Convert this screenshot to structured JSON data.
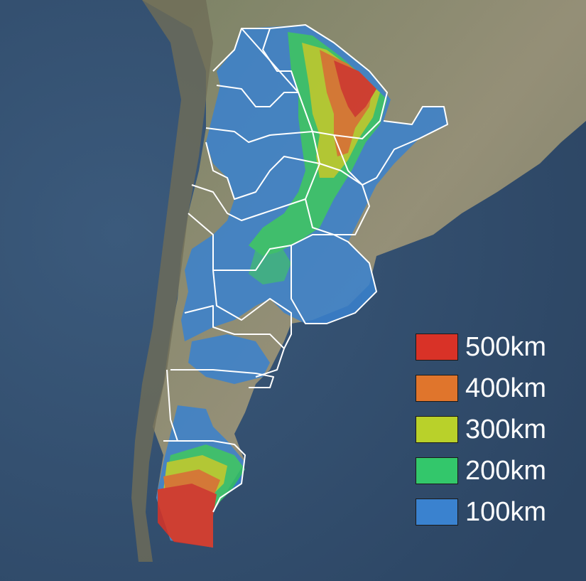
{
  "colors": {
    "ocean": "#34506f",
    "land": "#8a8a6e",
    "land_light": "#a59f80",
    "border": "#ffffff"
  },
  "legend": {
    "items": [
      {
        "label": "500km",
        "color": "#d93227"
      },
      {
        "label": "400km",
        "color": "#e0752c"
      },
      {
        "label": "300km",
        "color": "#b9d12a"
      },
      {
        "label": "200km",
        "color": "#33c76b"
      },
      {
        "label": "100km",
        "color": "#3a82cf"
      }
    ]
  }
}
